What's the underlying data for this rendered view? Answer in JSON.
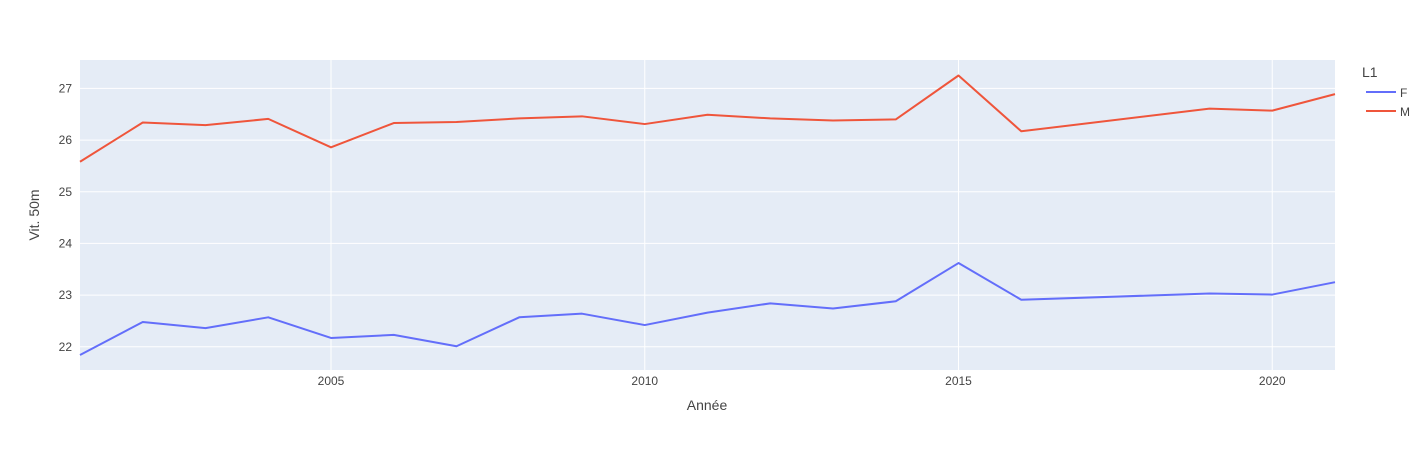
{
  "chart_data": {
    "type": "line",
    "title": "",
    "xlabel": "Année",
    "ylabel": "Vit. 50m",
    "xlim": [
      2001,
      2021
    ],
    "ylim": [
      21.55,
      27.55
    ],
    "x_ticks": [
      2005,
      2010,
      2015,
      2020
    ],
    "y_ticks": [
      22,
      23,
      24,
      25,
      26,
      27
    ],
    "grid": true,
    "legend": {
      "title": "L1",
      "position": "top-right"
    },
    "colors": {
      "plot_bg": "#e5ecf6",
      "grid": "#ffffff",
      "F": "#636efa",
      "M": "#ef553b"
    },
    "series": [
      {
        "name": "F",
        "points": [
          [
            2001,
            21.84
          ],
          [
            2002,
            22.48
          ],
          [
            2003,
            22.36
          ],
          [
            2004,
            22.57
          ],
          [
            2005,
            22.17
          ],
          [
            2006,
            22.23
          ],
          [
            2007,
            22.01
          ],
          [
            2008,
            22.57
          ],
          [
            2009,
            22.64
          ],
          [
            2010,
            22.42
          ],
          [
            2011,
            22.66
          ],
          [
            2012,
            22.84
          ],
          [
            2013,
            22.74
          ],
          [
            2014,
            22.88
          ],
          [
            2015,
            23.62
          ],
          [
            2016,
            22.91
          ],
          [
            2019,
            23.03
          ],
          [
            2020,
            23.01
          ],
          [
            2021,
            23.25
          ]
        ]
      },
      {
        "name": "M",
        "points": [
          [
            2001,
            25.58
          ],
          [
            2002,
            26.34
          ],
          [
            2003,
            26.29
          ],
          [
            2004,
            26.41
          ],
          [
            2005,
            25.86
          ],
          [
            2006,
            26.33
          ],
          [
            2007,
            26.35
          ],
          [
            2008,
            26.42
          ],
          [
            2009,
            26.46
          ],
          [
            2010,
            26.31
          ],
          [
            2011,
            26.49
          ],
          [
            2012,
            26.42
          ],
          [
            2013,
            26.38
          ],
          [
            2014,
            26.4
          ],
          [
            2015,
            27.25
          ],
          [
            2016,
            26.17
          ],
          [
            2019,
            26.61
          ],
          [
            2020,
            26.57
          ],
          [
            2021,
            26.89
          ]
        ]
      }
    ]
  }
}
